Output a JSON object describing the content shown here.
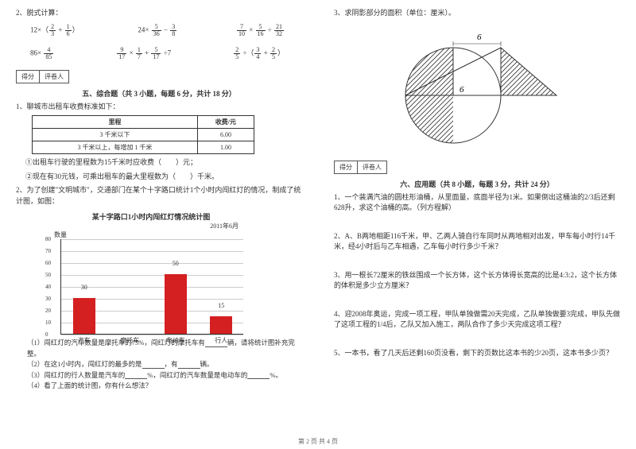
{
  "left": {
    "q2_label": "2、脱式计算：",
    "row1": {
      "e1": {
        "pre": "12×（",
        "f1n": "2",
        "f1d": "3",
        "mid": " + ",
        "f2n": "1",
        "f2d": "6",
        "post": "）"
      },
      "e2": {
        "pre": "24× ",
        "f1n": "5",
        "f1d": "36",
        "mid": " − ",
        "f2n": "3",
        "f2d": "8",
        "post": ""
      },
      "e3": {
        "f1n": "7",
        "f1d": "10",
        "mid1": " × ",
        "f2n": "5",
        "f2d": "16",
        "mid2": " ÷ ",
        "f3n": "21",
        "f3d": "32"
      }
    },
    "row2": {
      "e1": {
        "pre": "86× ",
        "f1n": "4",
        "f1d": "85"
      },
      "e2": {
        "f1n": "9",
        "f1d": "17",
        "mid1": " × ",
        "f2n": "1",
        "f2d": "7",
        "mid2": " + ",
        "f3n": "5",
        "f3d": "17",
        "post": " ÷7"
      },
      "e3": {
        "f1n": "2",
        "f1d": "5",
        "mid1": " ÷（",
        "f2n": "3",
        "f2d": "4",
        "mid2": " + ",
        "f3n": "2",
        "f3d": "5",
        "post": "）"
      }
    },
    "scorebox": {
      "a": "得分",
      "b": "评卷人"
    },
    "sec5": "五、综合题（共 3 小题，每题 6 分，共计 18 分）",
    "q5_1": "1、聊城市出租车收费标准如下：",
    "fare": {
      "h1": "里程",
      "h2": "收费/元",
      "r1a": "3 千米以下",
      "r1b": "6.00",
      "r2a": "3 千米以上，每增加 1 千米",
      "r2b": "1.00"
    },
    "q5_1a": "①出租车行驶的里程数为15千米时应收费（　　）元；",
    "q5_1b": "②现在有30元钱，可乘出租车的最大里程数为（　　）千米。",
    "q5_2": "2、为了创建\"文明城市\"，交通部门在某个十字路口统计1个小时内闯红灯的情况，制成了统计图，如图：",
    "chart": {
      "title": "某十字路口1小时内闯红灯情况统计图",
      "date": "2011年6月",
      "ylabel": "数量",
      "ymax": 80,
      "ytick": 10,
      "categories": [
        "汽车",
        "摩托车",
        "电动车",
        "行人"
      ],
      "values": [
        30,
        null,
        50,
        15
      ],
      "value_labels": [
        "30",
        "",
        "50",
        "15"
      ],
      "bar_color": "#d42020",
      "grid_color": "#cccccc"
    },
    "subs": {
      "s1a": "（1）闯红灯的汽车数量是摩托车的75%，闯红灯的摩托车有",
      "s1b": "辆，请将统计图补充完整。",
      "s2a": "（2）在这1小时内，闯红灯的最多的是",
      "s2b": "，有",
      "s2c": "辆。",
      "s3a": "（3）闯红灯的行人数量是汽车的",
      "s3b": "%，闯红灯的汽车数量是电动车的",
      "s3c": "%。",
      "s4": "（4）看了上面的统计图，你有什么想法？"
    }
  },
  "right": {
    "q3": "3、求阴影部分的面积（单位：厘米）。",
    "fig": {
      "top_label": "6",
      "inner_label": "6"
    },
    "scorebox": {
      "a": "得分",
      "b": "评卷人"
    },
    "sec6": "六、应用题（共 8 小题，每题 3 分，共计 24 分）",
    "q1": "1、一个装满汽油的圆柱形油桶，从里面量，底面半径为1米。如果倒出这桶油的2/3后还剩628升，求这个油桶的高。（列方程解）",
    "q2": "2、A、B两地相距116千米，甲、乙两人骑自行车同时从两地相对出发，甲车每小时行14千米，经4小时后与乙车相遇，乙车每小时行多少千米？",
    "q3b": "3、用一根长72厘米的铁丝围成一个长方体，这个长方体得长宽高的比是4:3:2，这个长方体的体积是多少立方厘米？",
    "q4": "4、迎2008年奥运，完成一项工程，甲队单独做需20天完成，乙队单独做要3完成，甲队先做了这项工程的1/4后，乙队又加入施工，两队合作了多少天完成这项工程？",
    "q5": "5、一本书，看了几天后还剩160页没看，剩下的页数比这本书的少20页，这本书多少页？"
  },
  "footer": "第 2 页 共 4 页"
}
